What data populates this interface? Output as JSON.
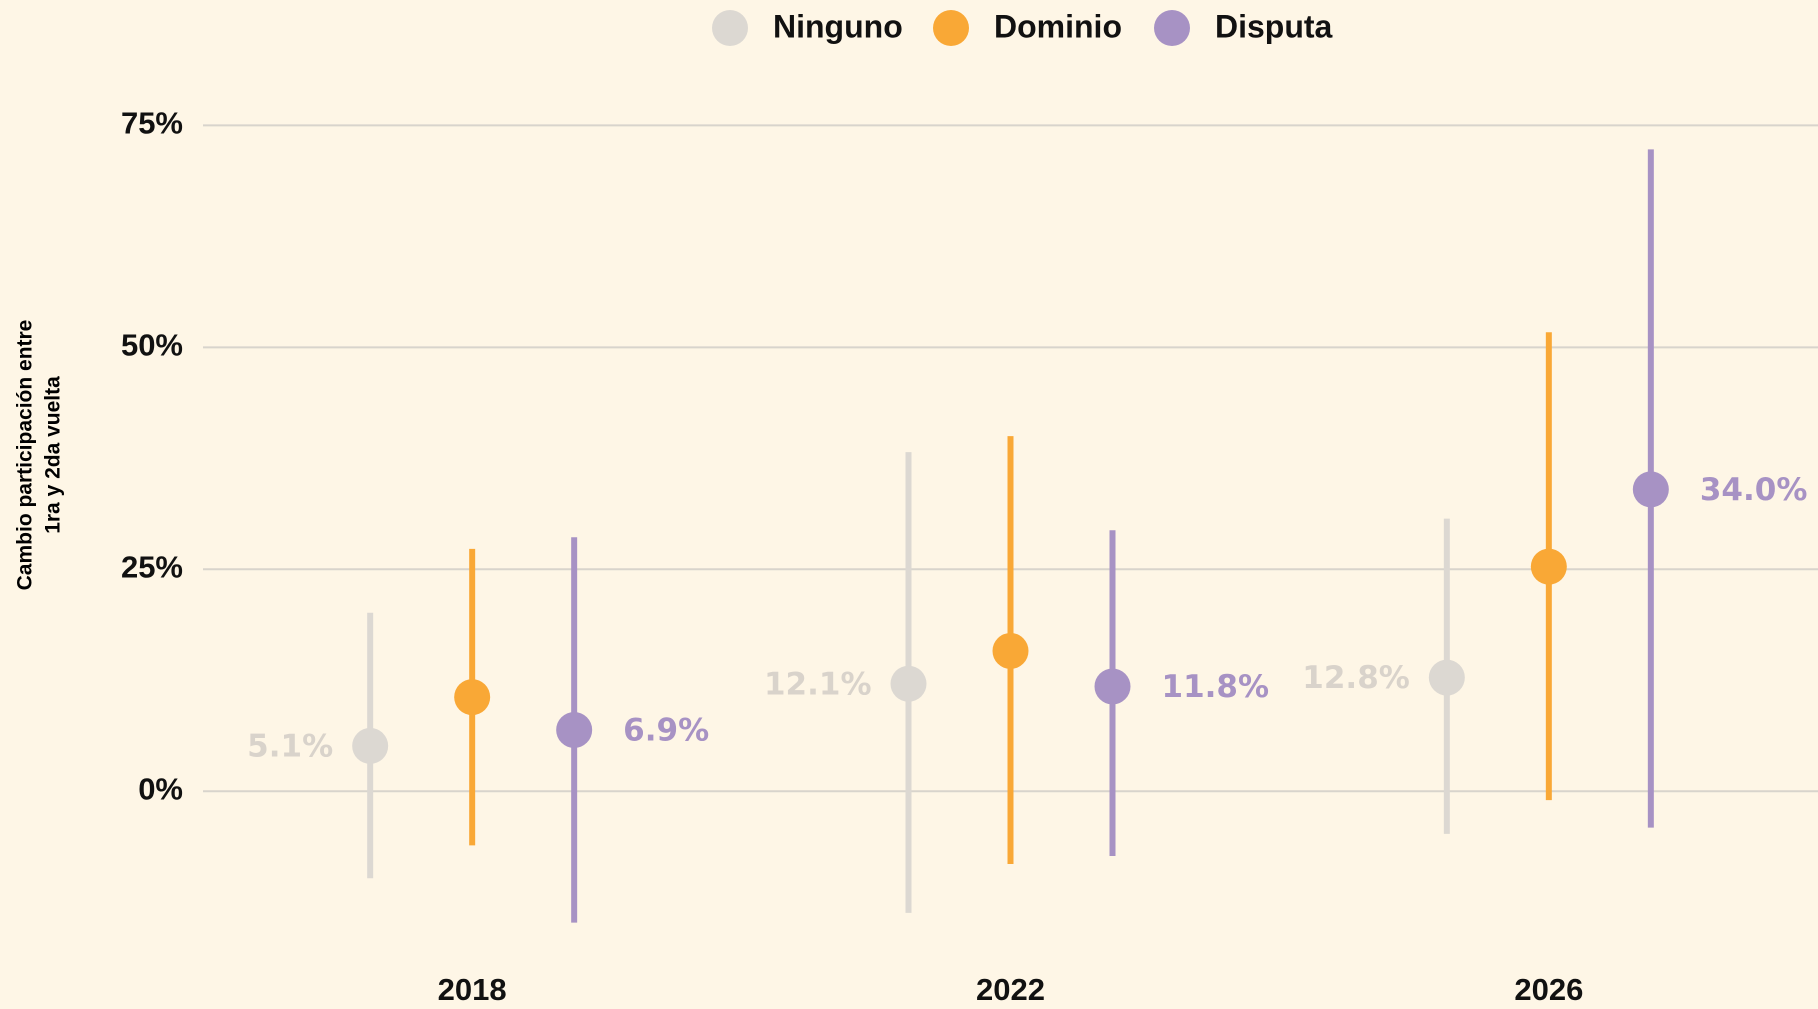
{
  "chart_data": {
    "type": "dot_range",
    "y_label": [
      "Cambio participación entre",
      "1ra y 2da vuelta"
    ],
    "categories": [
      "2018",
      "2022",
      "2026"
    ],
    "ylim": [
      -18,
      80
    ],
    "yticks": [
      {
        "value": 0,
        "label": "0%"
      },
      {
        "value": 25,
        "label": "25%"
      },
      {
        "value": 50,
        "label": "50%"
      },
      {
        "value": 75,
        "label": "75%"
      }
    ],
    "grid": true,
    "legend": "top",
    "series": [
      {
        "name": "Ninguno",
        "color": "#dcd8d2",
        "values": [
          5.1,
          12.1,
          12.8
        ],
        "low": [
          -9.8,
          -13.7,
          -4.8
        ],
        "high": [
          20.1,
          38.2,
          30.7
        ],
        "value_labels": [
          "5.1%",
          "12.1%",
          "12.8%"
        ]
      },
      {
        "name": "Dominio",
        "color": "#f9a836",
        "values": [
          10.6,
          15.8,
          25.3
        ],
        "low": [
          -6.1,
          -8.2,
          -1.0
        ],
        "high": [
          27.3,
          40.0,
          51.7
        ]
      },
      {
        "name": "Disputa",
        "color": "#a792c4",
        "values": [
          6.9,
          11.8,
          34.0
        ],
        "low": [
          -14.8,
          -7.3,
          -4.1
        ],
        "high": [
          28.6,
          29.4,
          72.3
        ],
        "value_labels": [
          "6.9%",
          "11.8%",
          "34.0%"
        ]
      }
    ]
  }
}
